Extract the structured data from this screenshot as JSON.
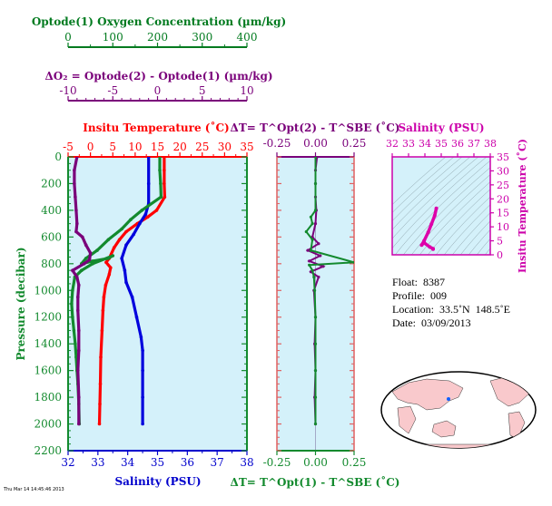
{
  "chart_data": [
    {
      "type": "line",
      "panel": "main",
      "top_axes": [
        {
          "title": "Optode(1) Oxygen Concentration (µm/kg)",
          "ticks": [
            "0",
            "100",
            "200",
            "300",
            "400"
          ],
          "range": [
            0,
            400
          ],
          "color": "#007a1e"
        },
        {
          "title": "ΔO₂ = Optode(2) - Optode(1)     (µm/kg)",
          "ticks": [
            "-10",
            "-5",
            "0",
            "5",
            "10"
          ],
          "range": [
            -10,
            10
          ],
          "color": "#7a007a"
        },
        {
          "title": "Insitu Temperature (˚C)",
          "ticks": [
            "-5",
            "0",
            "5",
            "10",
            "15",
            "20",
            "25",
            "30",
            "35"
          ],
          "range": [
            -5,
            35
          ],
          "color": "#ff0000"
        }
      ],
      "bottom_axis": {
        "title": "Salinity (PSU)",
        "ticks": [
          "32",
          "33",
          "34",
          "35",
          "36",
          "37",
          "38"
        ],
        "range": [
          32,
          38
        ],
        "color": "#0000cc"
      },
      "ylabel": "Pressure (decibar)",
      "yticks": [
        "0",
        "200",
        "400",
        "600",
        "800",
        "1000",
        "1200",
        "1400",
        "1600",
        "1800",
        "2000",
        "2200"
      ],
      "ylim": [
        2200,
        0
      ],
      "series": [
        {
          "color": "#ff0000",
          "axis": "temperature",
          "points": [
            [
              16.5,
              0
            ],
            [
              16.5,
              100
            ],
            [
              16.5,
              200
            ],
            [
              16.6,
              300
            ],
            [
              14.8,
              400
            ],
            [
              12.8,
              450
            ],
            [
              10.5,
              500
            ],
            [
              8,
              560
            ],
            [
              6.5,
              620
            ],
            [
              5.3,
              680
            ],
            [
              4.2,
              760
            ],
            [
              3.5,
              790
            ],
            [
              4.5,
              830
            ],
            [
              4.2,
              880
            ],
            [
              3.4,
              960
            ],
            [
              3,
              1050
            ],
            [
              2.8,
              1150
            ],
            [
              2.6,
              1300
            ],
            [
              2.3,
              1500
            ],
            [
              2.2,
              1700
            ],
            [
              2.1,
              1850
            ],
            [
              2,
              2000
            ]
          ]
        },
        {
          "color": "#0000dd",
          "axis": "salinity",
          "points": [
            [
              34.7,
              0
            ],
            [
              34.7,
              200
            ],
            [
              34.7,
              350
            ],
            [
              34.6,
              430
            ],
            [
              34.4,
              500
            ],
            [
              34.2,
              580
            ],
            [
              33.95,
              660
            ],
            [
              33.8,
              760
            ],
            [
              33.9,
              850
            ],
            [
              33.95,
              940
            ],
            [
              34.15,
              1050
            ],
            [
              34.3,
              1200
            ],
            [
              34.45,
              1350
            ],
            [
              34.5,
              1450
            ],
            [
              34.5,
              1600
            ],
            [
              34.5,
              1800
            ],
            [
              34.5,
              2000
            ]
          ]
        },
        {
          "color": "#138a2e",
          "axis": "oxygen",
          "points": [
            [
              205,
              0
            ],
            [
              205,
              100
            ],
            [
              207,
              200
            ],
            [
              208,
              300
            ],
            [
              165,
              400
            ],
            [
              140,
              470
            ],
            [
              120,
              540
            ],
            [
              90,
              620
            ],
            [
              65,
              700
            ],
            [
              40,
              760
            ],
            [
              30,
              800
            ],
            [
              55,
              780
            ],
            [
              90,
              760
            ],
            [
              100,
              740
            ],
            [
              55,
              800
            ],
            [
              30,
              850
            ],
            [
              15,
              900
            ],
            [
              10,
              1000
            ],
            [
              8,
              1100
            ],
            [
              10,
              1200
            ],
            [
              13,
              1300
            ],
            [
              16,
              1400
            ],
            [
              18,
              1500
            ],
            [
              20,
              1600
            ],
            [
              22,
              1700
            ],
            [
              24,
              1850
            ],
            [
              25,
              2000
            ]
          ]
        },
        {
          "color": "#7a007a",
          "axis": "delta_o2",
          "points": [
            [
              -9,
              0
            ],
            [
              -9.3,
              100
            ],
            [
              -9.3,
              200
            ],
            [
              -9.2,
              300
            ],
            [
              -9.1,
              400
            ],
            [
              -9,
              500
            ],
            [
              -9.1,
              560
            ],
            [
              -8.4,
              600
            ],
            [
              -8,
              660
            ],
            [
              -7.5,
              720
            ],
            [
              -7.6,
              770
            ],
            [
              -8.2,
              800
            ],
            [
              -9.5,
              850
            ],
            [
              -9,
              900
            ],
            [
              -8.8,
              960
            ],
            [
              -8.9,
              1050
            ],
            [
              -8.9,
              1150
            ],
            [
              -8.8,
              1300
            ],
            [
              -8.8,
              1450
            ],
            [
              -8.9,
              1600
            ],
            [
              -8.8,
              1800
            ],
            [
              -8.8,
              2000
            ]
          ]
        }
      ]
    },
    {
      "type": "line",
      "panel": "delta_t",
      "top_axis": {
        "title": "ΔT= T^Opt(2) - T^SBE (˚C)",
        "ticks": [
          "-0.25",
          "0.00",
          "0.25"
        ],
        "range": [
          -0.25,
          0.25
        ],
        "color": "#7a007a"
      },
      "bottom_axis": {
        "title": "ΔT= T^Opt(1) - T^SBE (˚C)",
        "ticks": [
          "-0.25",
          "0.00",
          "0.25"
        ],
        "range": [
          -0.25,
          0.25
        ],
        "color": "#138a2e"
      },
      "ylim": [
        2200,
        0
      ],
      "series": [
        {
          "color": "#7a007a",
          "points": [
            [
              0.01,
              0
            ],
            [
              0.0,
              100
            ],
            [
              0.0,
              200
            ],
            [
              0.0,
              300
            ],
            [
              0.005,
              400
            ],
            [
              0.0,
              500
            ],
            [
              -0.02,
              600
            ],
            [
              0.02,
              650
            ],
            [
              -0.05,
              700
            ],
            [
              0.03,
              740
            ],
            [
              -0.04,
              780
            ],
            [
              0.05,
              820
            ],
            [
              -0.03,
              860
            ],
            [
              0.02,
              900
            ],
            [
              -0.01,
              1000
            ],
            [
              0.0,
              1200
            ],
            [
              -0.005,
              1400
            ],
            [
              0.0,
              1600
            ],
            [
              -0.005,
              1800
            ],
            [
              0.0,
              2000
            ]
          ]
        },
        {
          "color": "#138a2e",
          "points": [
            [
              0.0,
              0
            ],
            [
              0.0,
              200
            ],
            [
              0.0,
              400
            ],
            [
              -0.03,
              450
            ],
            [
              -0.02,
              500
            ],
            [
              -0.06,
              560
            ],
            [
              -0.02,
              620
            ],
            [
              -0.03,
              700
            ],
            [
              0.25,
              790
            ],
            [
              -0.04,
              810
            ],
            [
              -0.02,
              850
            ],
            [
              -0.01,
              900
            ],
            [
              -0.005,
              1000
            ],
            [
              0.0,
              1200
            ],
            [
              0.0,
              1400
            ],
            [
              0.0,
              1600
            ],
            [
              0.0,
              1800
            ],
            [
              0.0,
              2000
            ]
          ]
        }
      ]
    },
    {
      "type": "line",
      "panel": "ts",
      "title": "Salinity (PSU)",
      "xticks": [
        "32",
        "33",
        "34",
        "35",
        "36",
        "37",
        "38"
      ],
      "xrange": [
        32,
        38
      ],
      "ylabel": "Insitu Temperature (˚C)",
      "yticks": [
        "0",
        "5",
        "10",
        "15",
        "20",
        "25",
        "30",
        "35"
      ],
      "yrange": [
        0,
        35
      ],
      "series": [
        {
          "color": "#dd00aa",
          "points": [
            [
              34.7,
              16.6
            ],
            [
              34.6,
              14
            ],
            [
              34.4,
              11
            ],
            [
              34.2,
              8
            ],
            [
              33.95,
              5
            ],
            [
              33.8,
              3.5
            ],
            [
              33.95,
              4.3
            ],
            [
              34.3,
              2.8
            ],
            [
              34.5,
              2.2
            ],
            [
              34.5,
              2.0
            ]
          ]
        }
      ]
    }
  ],
  "info": {
    "float": "Float:  8387",
    "profile": "Profile:  009",
    "location": "Location:  33.5˚N  148.5˚E",
    "date": "Date:  03/09/2013"
  },
  "footer": "Thu Mar 14 14:45:46 2013"
}
